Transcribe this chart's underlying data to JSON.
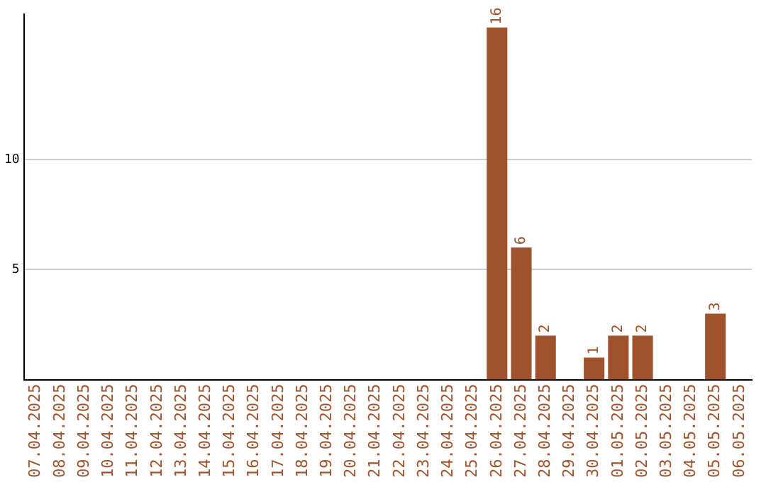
{
  "chart_data": {
    "type": "bar",
    "categories": [
      "07.04.2025",
      "08.04.2025",
      "09.04.2025",
      "10.04.2025",
      "11.04.2025",
      "12.04.2025",
      "13.04.2025",
      "14.04.2025",
      "15.04.2025",
      "16.04.2025",
      "17.04.2025",
      "18.04.2025",
      "19.04.2025",
      "20.04.2025",
      "21.04.2025",
      "22.04.2025",
      "23.04.2025",
      "24.04.2025",
      "25.04.2025",
      "26.04.2025",
      "27.04.2025",
      "28.04.2025",
      "29.04.2025",
      "30.04.2025",
      "01.05.2025",
      "02.05.2025",
      "03.05.2025",
      "04.05.2025",
      "05.05.2025",
      "06.05.2025"
    ],
    "values": [
      0,
      0,
      0,
      0,
      0,
      0,
      0,
      0,
      0,
      0,
      0,
      0,
      0,
      0,
      0,
      0,
      0,
      0,
      0,
      16,
      6,
      2,
      0,
      1,
      2,
      2,
      0,
      0,
      3,
      0
    ],
    "value_labels": [
      null,
      null,
      null,
      null,
      null,
      null,
      null,
      null,
      null,
      null,
      null,
      null,
      null,
      null,
      null,
      null,
      null,
      null,
      null,
      "16",
      "6",
      "2",
      null,
      "1",
      "2",
      "2",
      null,
      null,
      "3",
      null
    ],
    "color": "#a0522d",
    "ylim": [
      0,
      16.6
    ],
    "yticks": [
      5,
      10
    ],
    "grid": "y",
    "legend": false
  }
}
